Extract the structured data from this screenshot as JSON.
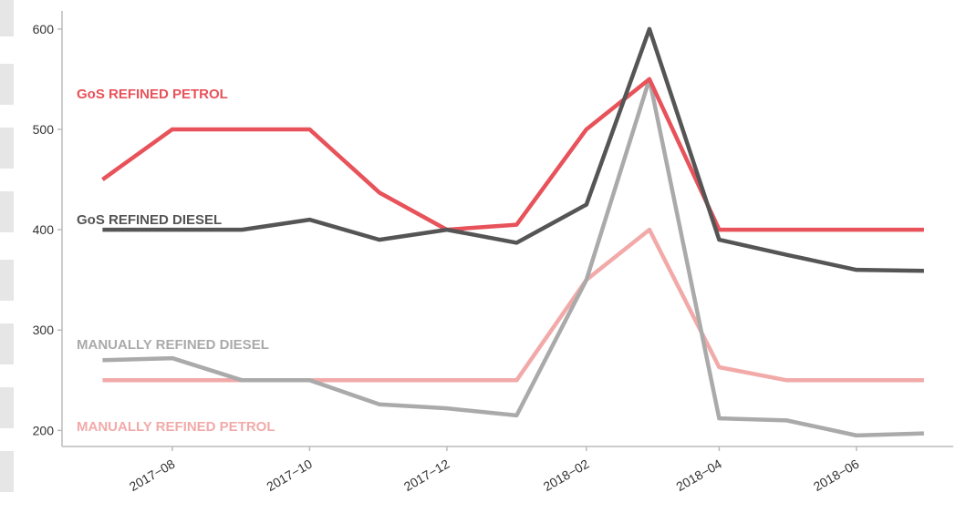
{
  "chart_data": {
    "type": "line",
    "x": [
      "2017-07",
      "2017-08",
      "2017-09",
      "2017-10",
      "2017-11",
      "2017-12",
      "2018-01",
      "2018-02",
      "2018-03",
      "2018-04",
      "2018-05",
      "2018-06",
      "2018-07"
    ],
    "series": [
      {
        "name": "GoS REFINED PETROL",
        "color": "#e8525a",
        "values": [
          450,
          500,
          500,
          500,
          437,
          400,
          405,
          500,
          550,
          400,
          400,
          400,
          400
        ]
      },
      {
        "name": "GoS REFINED DIESEL",
        "color": "#555555",
        "values": [
          400,
          400,
          400,
          410,
          390,
          400,
          387,
          425,
          600,
          390,
          375,
          360,
          359
        ]
      },
      {
        "name": "MANUALLY REFINED DIESEL",
        "color": "#aaaaaa",
        "values": [
          270,
          272,
          250,
          250,
          226,
          222,
          215,
          350,
          550,
          212,
          210,
          195,
          197
        ]
      },
      {
        "name": "MANUALLY REFINED PETROL",
        "color": "#f2aaa9",
        "values": [
          250,
          250,
          250,
          250,
          250,
          250,
          250,
          350,
          400,
          263,
          250,
          250,
          250
        ]
      }
    ],
    "xlim": [
      "2017-06-13",
      "2018-07-14"
    ],
    "xticks": [
      {
        "value": "2017-08",
        "label": "2017−08"
      },
      {
        "value": "2017-10",
        "label": "2017−10"
      },
      {
        "value": "2017-12",
        "label": "2017−12"
      },
      {
        "value": "2018-02",
        "label": "2018−02"
      },
      {
        "value": "2018-04",
        "label": "2018−04"
      },
      {
        "value": "2018-06",
        "label": "2018−06"
      }
    ],
    "ylim": [
      184,
      618
    ],
    "yticks": [
      200,
      300,
      400,
      500,
      600
    ]
  }
}
